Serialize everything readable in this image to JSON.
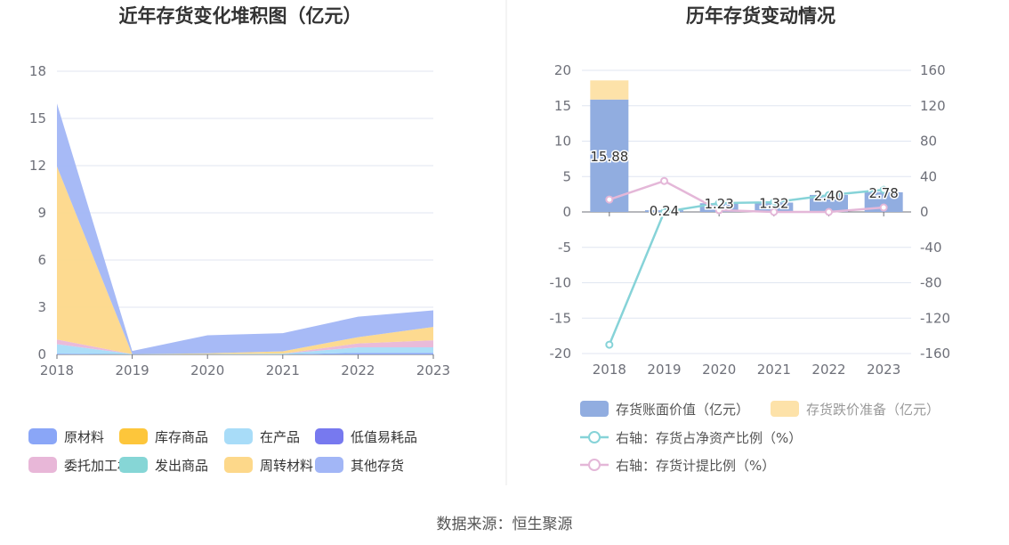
{
  "chart_data": [
    {
      "type": "area",
      "title": "近年存货变化堆积图（亿元）",
      "x": [
        "2018",
        "2019",
        "2020",
        "2021",
        "2022",
        "2023"
      ],
      "ylim": [
        0,
        18
      ],
      "yticks": [
        "0",
        "3",
        "6",
        "9",
        "12",
        "15",
        "18"
      ],
      "grid": true,
      "legend_position": "bottom",
      "series": [
        {
          "name": "原材料",
          "color": "#8aa6f7",
          "values": [
            0.05,
            0.0,
            0.0,
            0.0,
            0.1,
            0.1
          ]
        },
        {
          "name": "库存商品",
          "color": "#fdc63b",
          "values": [
            0.0,
            0.0,
            0.0,
            0.0,
            0.0,
            0.0
          ]
        },
        {
          "name": "在产品",
          "color": "#a8dcf8",
          "values": [
            0.6,
            0.02,
            0.02,
            0.05,
            0.35,
            0.35
          ]
        },
        {
          "name": "低值易耗品",
          "color": "#7779ef",
          "values": [
            0.0,
            0.0,
            0.0,
            0.0,
            0.0,
            0.0
          ]
        },
        {
          "name": "委托加工材料",
          "color": "#e8b7d8",
          "values": [
            0.3,
            0.0,
            0.0,
            0.0,
            0.25,
            0.45
          ]
        },
        {
          "name": "发出商品",
          "color": "#86d6d6",
          "values": [
            0.0,
            0.0,
            0.0,
            0.0,
            0.0,
            0.0
          ]
        },
        {
          "name": "周转材料",
          "color": "#fdd88a",
          "values": [
            11.0,
            0.0,
            0.05,
            0.15,
            0.4,
            0.85
          ]
        },
        {
          "name": "其他存货",
          "color": "#a2b6f6",
          "values": [
            4.0,
            0.2,
            1.15,
            1.15,
            1.3,
            1.05
          ]
        }
      ]
    },
    {
      "type": "bar",
      "title": "历年存货变动情况",
      "categories": [
        "2018",
        "2019",
        "2020",
        "2021",
        "2022",
        "2023"
      ],
      "ylim": [
        -20,
        20
      ],
      "yticks": [
        "-20",
        "-15",
        "-10",
        "-5",
        "0",
        "5",
        "10",
        "15",
        "20"
      ],
      "y2lim": [
        -160,
        160
      ],
      "y2ticks": [
        "-160",
        "-120",
        "-80",
        "-40",
        "0",
        "40",
        "80",
        "120",
        "160"
      ],
      "grid": true,
      "legend_position": "bottom",
      "series": [
        {
          "name": "存货账面价值（亿元）",
          "kind": "bar",
          "color": "#91ade0",
          "values": [
            15.88,
            0.24,
            1.23,
            1.32,
            2.4,
            2.78
          ],
          "labels": [
            "15.88",
            "0.24",
            "1.23",
            "1.32",
            "2.40",
            "2.78"
          ]
        },
        {
          "name": "存货跌价准备（亿元）",
          "kind": "bar",
          "color": "#fde2a9",
          "values": [
            2.7,
            0.0,
            0.0,
            0.0,
            0.0,
            0.0
          ]
        },
        {
          "name": "右轴：存货占净资产比例（%）",
          "kind": "line",
          "axis": "right",
          "color": "#86d3d8",
          "values": [
            -150,
            0,
            10,
            11,
            19,
            25
          ]
        },
        {
          "name": "右轴：存货计提比例（%）",
          "kind": "line",
          "axis": "right",
          "color": "#e4b7d8",
          "values": [
            14,
            35,
            2,
            0,
            0,
            5
          ]
        }
      ]
    }
  ],
  "source": "数据来源：恒生聚源"
}
